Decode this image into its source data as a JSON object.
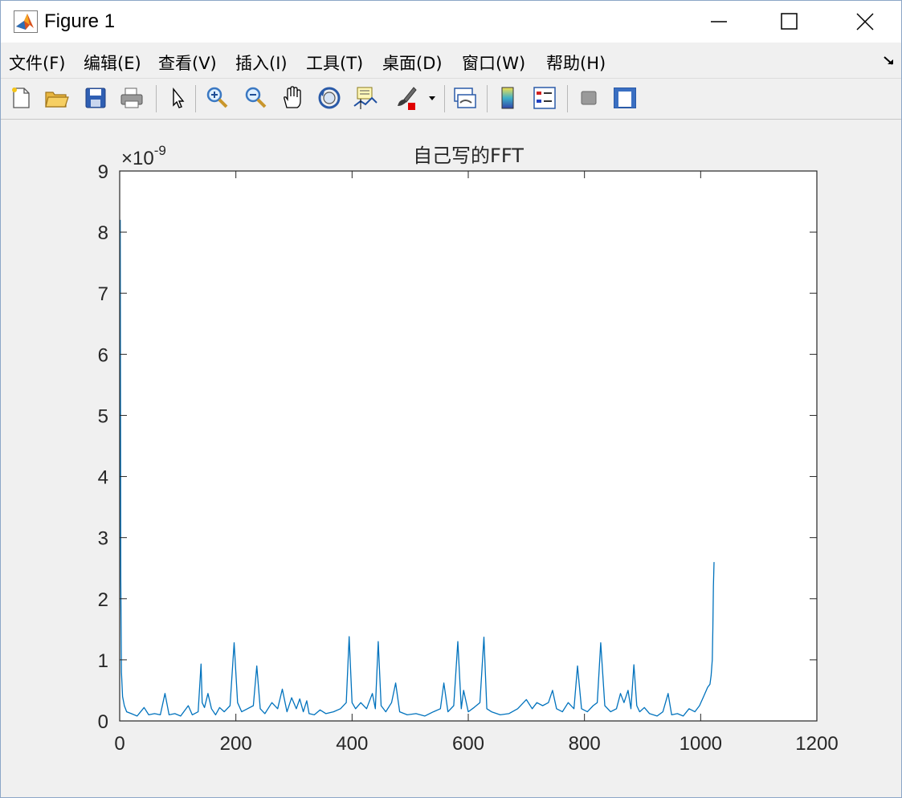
{
  "window": {
    "title": "Figure 1"
  },
  "menu": {
    "items": [
      "文件(F)",
      "编辑(E)",
      "查看(V)",
      "插入(I)",
      "工具(T)",
      "桌面(D)",
      "窗口(W)",
      "帮助(H)"
    ]
  },
  "toolbar": {
    "icons": [
      "new-figure-icon",
      "open-file-icon",
      "save-icon",
      "print-icon",
      "pointer-icon",
      "zoom-in-icon",
      "zoom-out-icon",
      "pan-icon",
      "rotate-3d-icon",
      "data-cursor-icon",
      "brush-icon",
      "link-plot-icon",
      "colorbar-icon",
      "legend-icon",
      "hide-plot-tools-icon",
      "show-plot-tools-icon"
    ]
  },
  "plot": {
    "accent": "#0072bd"
  },
  "chart_data": {
    "type": "line",
    "title": "自己写的FFT",
    "xlabel": "",
    "ylabel": "",
    "exponent_label": "×10",
    "exponent_power": "-9",
    "xlim": [
      0,
      1200
    ],
    "ylim": [
      0,
      9
    ],
    "x_ticks": [
      "0",
      "200",
      "400",
      "600",
      "800",
      "1000",
      "1200"
    ],
    "y_ticks": [
      "0",
      "1",
      "2",
      "3",
      "4",
      "5",
      "6",
      "7",
      "8",
      "9"
    ],
    "grid": false,
    "series": [
      {
        "color": "#0072bd",
        "x": [
          1,
          2,
          3,
          5,
          8,
          12,
          20,
          30,
          42,
          50,
          60,
          70,
          78,
          85,
          95,
          105,
          118,
          125,
          135,
          140,
          142,
          146,
          152,
          158,
          165,
          172,
          180,
          190,
          197,
          203,
          210,
          220,
          230,
          236,
          242,
          250,
          262,
          272,
          280,
          288,
          296,
          304,
          310,
          316,
          322,
          326,
          335,
          345,
          355,
          368,
          380,
          390,
          395,
          400,
          406,
          415,
          425,
          435,
          440,
          445,
          450,
          458,
          468,
          475,
          482,
          495,
          510,
          525,
          540,
          552,
          558,
          565,
          575,
          582,
          588,
          592,
          600,
          610,
          620,
          627,
          632,
          640,
          655,
          670,
          685,
          700,
          710,
          718,
          728,
          738,
          745,
          752,
          762,
          772,
          782,
          788,
          795,
          805,
          815,
          822,
          828,
          835,
          845,
          855,
          862,
          868,
          875,
          880,
          885,
          890,
          895,
          903,
          912,
          925,
          935,
          944,
          950,
          960,
          970,
          980,
          990,
          998,
          1005,
          1012,
          1016,
          1018,
          1020,
          1021,
          1022,
          1023
        ],
        "y": [
          8.2,
          2.3,
          0.8,
          0.4,
          0.25,
          0.15,
          0.12,
          0.08,
          0.22,
          0.1,
          0.12,
          0.1,
          0.45,
          0.1,
          0.12,
          0.08,
          0.25,
          0.1,
          0.15,
          0.93,
          0.3,
          0.22,
          0.45,
          0.2,
          0.1,
          0.22,
          0.15,
          0.25,
          1.28,
          0.3,
          0.15,
          0.2,
          0.25,
          0.9,
          0.2,
          0.12,
          0.3,
          0.2,
          0.52,
          0.15,
          0.38,
          0.2,
          0.36,
          0.15,
          0.33,
          0.12,
          0.1,
          0.18,
          0.12,
          0.15,
          0.2,
          0.3,
          1.38,
          0.3,
          0.2,
          0.3,
          0.2,
          0.45,
          0.2,
          1.3,
          0.25,
          0.15,
          0.3,
          0.62,
          0.15,
          0.1,
          0.12,
          0.08,
          0.15,
          0.2,
          0.62,
          0.15,
          0.25,
          1.3,
          0.2,
          0.5,
          0.15,
          0.22,
          0.3,
          1.37,
          0.2,
          0.15,
          0.1,
          0.12,
          0.2,
          0.35,
          0.2,
          0.3,
          0.25,
          0.3,
          0.5,
          0.2,
          0.15,
          0.3,
          0.2,
          0.9,
          0.2,
          0.15,
          0.25,
          0.3,
          1.28,
          0.25,
          0.15,
          0.2,
          0.45,
          0.3,
          0.5,
          0.2,
          0.92,
          0.25,
          0.15,
          0.22,
          0.12,
          0.08,
          0.15,
          0.45,
          0.1,
          0.12,
          0.08,
          0.2,
          0.15,
          0.25,
          0.4,
          0.55,
          0.6,
          0.75,
          1.0,
          1.5,
          2.2,
          2.6
        ]
      }
    ]
  }
}
